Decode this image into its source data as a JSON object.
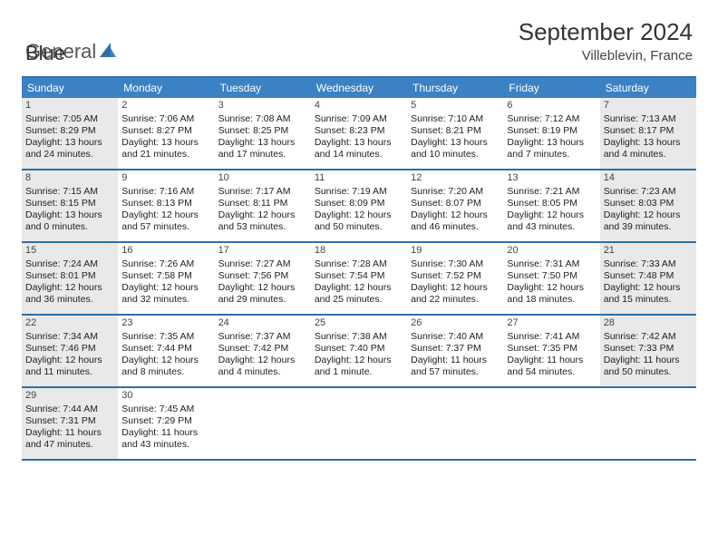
{
  "brand": {
    "part1": "General",
    "part2": "Blue"
  },
  "title": "September 2024",
  "location": "Villeblevin, France",
  "colors": {
    "header_bg": "#3b82c4",
    "border": "#2f6fa8",
    "shade": "#e9e9e9",
    "text": "#333333"
  },
  "day_labels": [
    "Sunday",
    "Monday",
    "Tuesday",
    "Wednesday",
    "Thursday",
    "Friday",
    "Saturday"
  ],
  "weeks": [
    [
      {
        "date": "1",
        "shade": true,
        "sunrise": "Sunrise: 7:05 AM",
        "sunset": "Sunset: 8:29 PM",
        "daylight": "Daylight: 13 hours and 24 minutes."
      },
      {
        "date": "2",
        "shade": false,
        "sunrise": "Sunrise: 7:06 AM",
        "sunset": "Sunset: 8:27 PM",
        "daylight": "Daylight: 13 hours and 21 minutes."
      },
      {
        "date": "3",
        "shade": false,
        "sunrise": "Sunrise: 7:08 AM",
        "sunset": "Sunset: 8:25 PM",
        "daylight": "Daylight: 13 hours and 17 minutes."
      },
      {
        "date": "4",
        "shade": false,
        "sunrise": "Sunrise: 7:09 AM",
        "sunset": "Sunset: 8:23 PM",
        "daylight": "Daylight: 13 hours and 14 minutes."
      },
      {
        "date": "5",
        "shade": false,
        "sunrise": "Sunrise: 7:10 AM",
        "sunset": "Sunset: 8:21 PM",
        "daylight": "Daylight: 13 hours and 10 minutes."
      },
      {
        "date": "6",
        "shade": false,
        "sunrise": "Sunrise: 7:12 AM",
        "sunset": "Sunset: 8:19 PM",
        "daylight": "Daylight: 13 hours and 7 minutes."
      },
      {
        "date": "7",
        "shade": true,
        "sunrise": "Sunrise: 7:13 AM",
        "sunset": "Sunset: 8:17 PM",
        "daylight": "Daylight: 13 hours and 4 minutes."
      }
    ],
    [
      {
        "date": "8",
        "shade": true,
        "sunrise": "Sunrise: 7:15 AM",
        "sunset": "Sunset: 8:15 PM",
        "daylight": "Daylight: 13 hours and 0 minutes."
      },
      {
        "date": "9",
        "shade": false,
        "sunrise": "Sunrise: 7:16 AM",
        "sunset": "Sunset: 8:13 PM",
        "daylight": "Daylight: 12 hours and 57 minutes."
      },
      {
        "date": "10",
        "shade": false,
        "sunrise": "Sunrise: 7:17 AM",
        "sunset": "Sunset: 8:11 PM",
        "daylight": "Daylight: 12 hours and 53 minutes."
      },
      {
        "date": "11",
        "shade": false,
        "sunrise": "Sunrise: 7:19 AM",
        "sunset": "Sunset: 8:09 PM",
        "daylight": "Daylight: 12 hours and 50 minutes."
      },
      {
        "date": "12",
        "shade": false,
        "sunrise": "Sunrise: 7:20 AM",
        "sunset": "Sunset: 8:07 PM",
        "daylight": "Daylight: 12 hours and 46 minutes."
      },
      {
        "date": "13",
        "shade": false,
        "sunrise": "Sunrise: 7:21 AM",
        "sunset": "Sunset: 8:05 PM",
        "daylight": "Daylight: 12 hours and 43 minutes."
      },
      {
        "date": "14",
        "shade": true,
        "sunrise": "Sunrise: 7:23 AM",
        "sunset": "Sunset: 8:03 PM",
        "daylight": "Daylight: 12 hours and 39 minutes."
      }
    ],
    [
      {
        "date": "15",
        "shade": true,
        "sunrise": "Sunrise: 7:24 AM",
        "sunset": "Sunset: 8:01 PM",
        "daylight": "Daylight: 12 hours and 36 minutes."
      },
      {
        "date": "16",
        "shade": false,
        "sunrise": "Sunrise: 7:26 AM",
        "sunset": "Sunset: 7:58 PM",
        "daylight": "Daylight: 12 hours and 32 minutes."
      },
      {
        "date": "17",
        "shade": false,
        "sunrise": "Sunrise: 7:27 AM",
        "sunset": "Sunset: 7:56 PM",
        "daylight": "Daylight: 12 hours and 29 minutes."
      },
      {
        "date": "18",
        "shade": false,
        "sunrise": "Sunrise: 7:28 AM",
        "sunset": "Sunset: 7:54 PM",
        "daylight": "Daylight: 12 hours and 25 minutes."
      },
      {
        "date": "19",
        "shade": false,
        "sunrise": "Sunrise: 7:30 AM",
        "sunset": "Sunset: 7:52 PM",
        "daylight": "Daylight: 12 hours and 22 minutes."
      },
      {
        "date": "20",
        "shade": false,
        "sunrise": "Sunrise: 7:31 AM",
        "sunset": "Sunset: 7:50 PM",
        "daylight": "Daylight: 12 hours and 18 minutes."
      },
      {
        "date": "21",
        "shade": true,
        "sunrise": "Sunrise: 7:33 AM",
        "sunset": "Sunset: 7:48 PM",
        "daylight": "Daylight: 12 hours and 15 minutes."
      }
    ],
    [
      {
        "date": "22",
        "shade": true,
        "sunrise": "Sunrise: 7:34 AM",
        "sunset": "Sunset: 7:46 PM",
        "daylight": "Daylight: 12 hours and 11 minutes."
      },
      {
        "date": "23",
        "shade": false,
        "sunrise": "Sunrise: 7:35 AM",
        "sunset": "Sunset: 7:44 PM",
        "daylight": "Daylight: 12 hours and 8 minutes."
      },
      {
        "date": "24",
        "shade": false,
        "sunrise": "Sunrise: 7:37 AM",
        "sunset": "Sunset: 7:42 PM",
        "daylight": "Daylight: 12 hours and 4 minutes."
      },
      {
        "date": "25",
        "shade": false,
        "sunrise": "Sunrise: 7:38 AM",
        "sunset": "Sunset: 7:40 PM",
        "daylight": "Daylight: 12 hours and 1 minute."
      },
      {
        "date": "26",
        "shade": false,
        "sunrise": "Sunrise: 7:40 AM",
        "sunset": "Sunset: 7:37 PM",
        "daylight": "Daylight: 11 hours and 57 minutes."
      },
      {
        "date": "27",
        "shade": false,
        "sunrise": "Sunrise: 7:41 AM",
        "sunset": "Sunset: 7:35 PM",
        "daylight": "Daylight: 11 hours and 54 minutes."
      },
      {
        "date": "28",
        "shade": true,
        "sunrise": "Sunrise: 7:42 AM",
        "sunset": "Sunset: 7:33 PM",
        "daylight": "Daylight: 11 hours and 50 minutes."
      }
    ],
    [
      {
        "date": "29",
        "shade": true,
        "sunrise": "Sunrise: 7:44 AM",
        "sunset": "Sunset: 7:31 PM",
        "daylight": "Daylight: 11 hours and 47 minutes."
      },
      {
        "date": "30",
        "shade": false,
        "sunrise": "Sunrise: 7:45 AM",
        "sunset": "Sunset: 7:29 PM",
        "daylight": "Daylight: 11 hours and 43 minutes."
      },
      {
        "empty": true
      },
      {
        "empty": true
      },
      {
        "empty": true
      },
      {
        "empty": true
      },
      {
        "empty": true
      }
    ]
  ]
}
